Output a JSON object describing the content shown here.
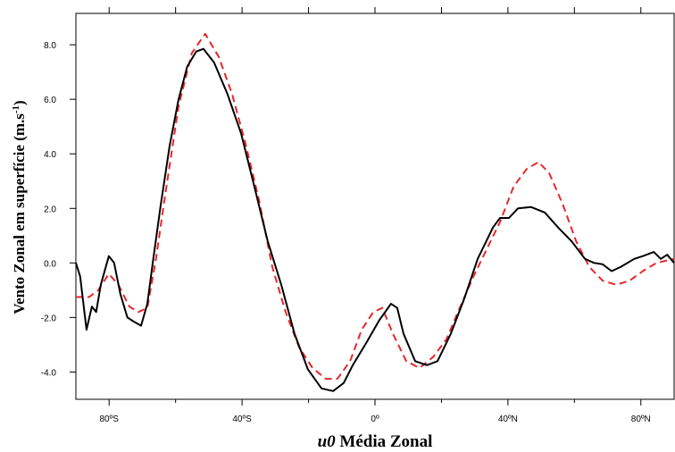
{
  "chart_data": {
    "type": "line",
    "xlabel_italic": "u0",
    "xlabel": "Média Zonal",
    "ylabel": "Vento Zonal em superfície (m.s",
    "ylabel_sup": "-1",
    "ylabel_end": ")",
    "xlim": [
      -90,
      90
    ],
    "ylim": [
      -5,
      9.15
    ],
    "xticks": [
      {
        "value": -80,
        "label": "80ºS"
      },
      {
        "value": -40,
        "label": "40ºS"
      },
      {
        "value": 0,
        "label": "0º"
      },
      {
        "value": 40,
        "label": "40ºN"
      },
      {
        "value": 80,
        "label": "80ºN"
      }
    ],
    "xminorticks": [
      -60,
      -20,
      20,
      60
    ],
    "yticks": [
      {
        "value": -4,
        "label": "-4.0"
      },
      {
        "value": -2,
        "label": "-2.0"
      },
      {
        "value": 0,
        "label": "0.0"
      },
      {
        "value": 2,
        "label": "2.0"
      },
      {
        "value": 4,
        "label": "4.0"
      },
      {
        "value": 6,
        "label": "6.0"
      },
      {
        "value": 8,
        "label": "8.0"
      }
    ],
    "series": [
      {
        "color": "#000000",
        "dash": false,
        "x": [
          -90,
          -88.7,
          -86.8,
          -85.2,
          -83.9,
          -82.5,
          -80.1,
          -78.5,
          -76.6,
          -74.5,
          -72.6,
          -70.4,
          -68.5,
          -66.7,
          -64.5,
          -61.8,
          -59.1,
          -56.5,
          -53.8,
          -51.6,
          -48.4,
          -44.4,
          -40.3,
          -36.3,
          -32.3,
          -28.2,
          -24.2,
          -20.2,
          -16.1,
          -12.6,
          -9.4,
          -6.7,
          -2.7,
          1.3,
          4.8,
          6.7,
          8.6,
          12.1,
          15.6,
          18.8,
          22.8,
          26.9,
          30.9,
          35.5,
          37.6,
          40.3,
          43,
          47,
          51.1,
          55.1,
          59.1,
          63.2,
          65.9,
          68.5,
          71.2,
          73.9,
          78,
          80.6,
          83.9,
          86,
          87.9,
          90
        ],
        "values": [
          0,
          -0.5,
          -2.45,
          -1.6,
          -1.8,
          -0.8,
          0.25,
          0,
          -1.15,
          -2.0,
          -2.15,
          -2.3,
          -1.5,
          0.15,
          2.1,
          4.3,
          6.0,
          7.2,
          7.75,
          7.85,
          7.35,
          6.2,
          4.75,
          2.8,
          0.8,
          -0.8,
          -2.6,
          -3.9,
          -4.6,
          -4.7,
          -4.4,
          -3.75,
          -2.95,
          -2.1,
          -1.5,
          -1.65,
          -2.6,
          -3.6,
          -3.75,
          -3.6,
          -2.6,
          -1.3,
          0.15,
          1.3,
          1.65,
          1.65,
          2.0,
          2.05,
          1.85,
          1.3,
          0.8,
          0.15,
          0,
          -0.05,
          -0.3,
          -0.15,
          0.15,
          0.25,
          0.4,
          0.15,
          0.3,
          0
        ]
      },
      {
        "color": "#e8262a",
        "dash": true,
        "x": [
          -90,
          -86,
          -83.3,
          -80.1,
          -77.2,
          -73.9,
          -71.2,
          -68.5,
          -65.9,
          -63.2,
          -59.1,
          -55.1,
          -51.1,
          -47,
          -43,
          -39,
          -34.9,
          -30.9,
          -26.9,
          -22.8,
          -18.8,
          -14.8,
          -11.3,
          -7.5,
          -4,
          -0.5,
          2.2,
          5.4,
          9.4,
          13.4,
          17.5,
          21.5,
          25.5,
          29.6,
          33.6,
          37.6,
          41.7,
          45.7,
          49.2,
          52.4,
          56.5,
          60.5,
          64.5,
          68.5,
          72.6,
          76.6,
          80.6,
          84.7,
          90
        ],
        "values": [
          -1.25,
          -1.25,
          -1.0,
          -0.4,
          -0.8,
          -1.6,
          -1.8,
          -1.65,
          0.15,
          2.45,
          5.75,
          7.7,
          8.4,
          7.55,
          6.2,
          4.4,
          2.3,
          -0.15,
          -1.8,
          -3.1,
          -3.85,
          -4.25,
          -4.25,
          -3.6,
          -2.45,
          -1.8,
          -1.65,
          -2.6,
          -3.6,
          -3.85,
          -3.45,
          -2.8,
          -1.65,
          -0.5,
          0.5,
          1.5,
          2.8,
          3.45,
          3.7,
          3.3,
          2.15,
          0.8,
          -0.15,
          -0.65,
          -0.8,
          -0.65,
          -0.3,
          0,
          0.15
        ]
      }
    ]
  }
}
